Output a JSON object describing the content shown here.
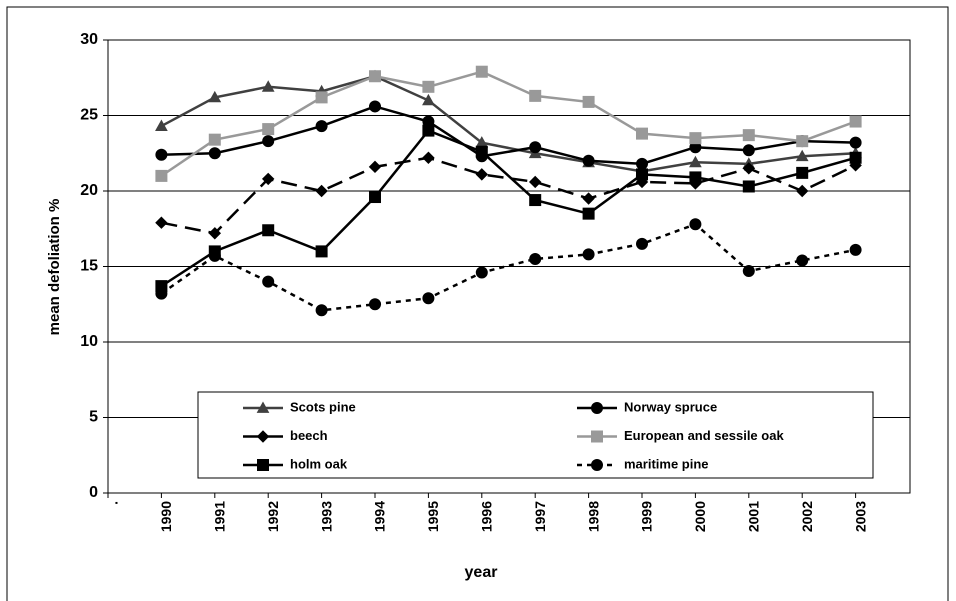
{
  "chart_data": {
    "type": "line",
    "x_label": "year",
    "y_label": "mean defoliation %",
    "categories": [
      ".",
      "1990",
      "1991",
      "1992",
      "1993",
      "1994",
      "1995",
      "1996",
      "1997",
      "1998",
      "1999",
      "2000",
      "2001",
      "2002",
      "2003"
    ],
    "ylim": [
      0,
      30
    ],
    "yticks": [
      0,
      5,
      10,
      15,
      20,
      25,
      30
    ],
    "grid": true,
    "series": [
      {
        "name": "Scots pine",
        "color": "#404040",
        "marker": "triangle",
        "dash": "solid",
        "values": [
          null,
          24.3,
          26.2,
          26.9,
          26.6,
          27.6,
          26.0,
          23.2,
          22.5,
          21.9,
          21.3,
          21.9,
          21.8,
          22.3,
          22.5
        ]
      },
      {
        "name": "Norway spruce",
        "color": "#000000",
        "marker": "circle",
        "dash": "solid",
        "values": [
          null,
          22.4,
          22.5,
          23.3,
          24.3,
          25.6,
          24.6,
          22.3,
          22.9,
          22.0,
          21.8,
          22.9,
          22.7,
          23.3,
          23.2
        ]
      },
      {
        "name": "beech",
        "color": "#000000",
        "marker": "diamond",
        "dash": "long",
        "values": [
          null,
          17.9,
          17.2,
          20.8,
          20.0,
          21.6,
          22.2,
          21.1,
          20.6,
          19.5,
          20.6,
          20.5,
          21.5,
          20.0,
          21.7
        ]
      },
      {
        "name": "European and sessile oak",
        "color": "#999999",
        "marker": "square",
        "dash": "solid",
        "values": [
          null,
          21.0,
          23.4,
          24.1,
          26.2,
          27.6,
          26.9,
          27.9,
          26.3,
          25.9,
          23.8,
          23.5,
          23.7,
          23.3,
          24.6
        ]
      },
      {
        "name": "holm oak",
        "color": "#000000",
        "marker": "square",
        "dash": "solid",
        "values": [
          null,
          13.7,
          16.0,
          17.4,
          16.0,
          19.6,
          24.0,
          22.6,
          19.4,
          18.5,
          21.1,
          20.9,
          20.3,
          21.2,
          22.2
        ]
      },
      {
        "name": "maritime pine",
        "color": "#000000",
        "marker": "circle",
        "dash": "short",
        "values": [
          null,
          13.2,
          15.7,
          14.0,
          12.1,
          12.5,
          12.9,
          14.6,
          15.5,
          15.8,
          16.5,
          17.8,
          14.7,
          15.4,
          16.1
        ]
      }
    ]
  }
}
